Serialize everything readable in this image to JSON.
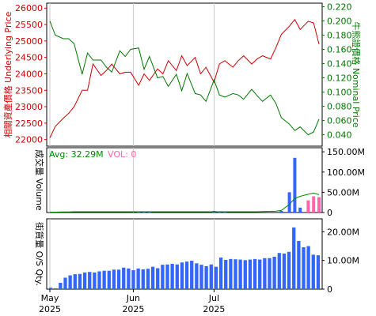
{
  "chart_data": [
    {
      "type": "line",
      "name": "price_panel",
      "x": [
        "2025-05-01",
        "2025-05-03",
        "2025-05-06",
        "2025-05-08",
        "2025-05-10",
        "2025-05-13",
        "2025-05-15",
        "2025-05-17",
        "2025-05-20",
        "2025-05-22",
        "2025-05-24",
        "2025-05-27",
        "2025-05-29",
        "2025-05-31",
        "2025-06-03",
        "2025-06-05",
        "2025-06-07",
        "2025-06-10",
        "2025-06-12",
        "2025-06-14",
        "2025-06-17",
        "2025-06-19",
        "2025-06-21",
        "2025-06-24",
        "2025-06-26",
        "2025-06-28",
        "2025-07-01",
        "2025-07-03",
        "2025-07-05",
        "2025-07-08",
        "2025-07-10",
        "2025-07-12",
        "2025-07-15",
        "2025-07-17",
        "2025-07-19",
        "2025-07-22",
        "2025-07-24",
        "2025-07-26",
        "2025-07-29",
        "2025-07-31",
        "2025-08-02",
        "2025-08-05",
        "2025-08-07",
        "2025-08-09"
      ],
      "series": [
        {
          "name": "Underlying Price",
          "axis": "left",
          "color": "#cc0000",
          "values": [
            22050,
            22400,
            22650,
            22800,
            23000,
            23500,
            23500,
            24300,
            23950,
            24100,
            24300,
            24000,
            24050,
            24050,
            23650,
            24000,
            23800,
            24150,
            24000,
            24400,
            24100,
            24550,
            24250,
            24500,
            24000,
            24200,
            23750,
            24300,
            24400,
            24200,
            24400,
            24550,
            24300,
            24450,
            24550,
            24450,
            24800,
            25200,
            25450,
            25650,
            25350,
            25600,
            25550,
            24900
          ]
        },
        {
          "name": "Nominal Price",
          "axis": "right",
          "color": "#007700",
          "values": [
            0.2,
            0.18,
            0.175,
            0.175,
            0.168,
            0.125,
            0.155,
            0.145,
            0.145,
            0.135,
            0.128,
            0.158,
            0.15,
            0.16,
            0.162,
            0.132,
            0.15,
            0.12,
            0.122,
            0.108,
            0.125,
            0.102,
            0.126,
            0.098,
            0.096,
            0.087,
            0.117,
            0.096,
            0.093,
            0.098,
            0.096,
            0.09,
            0.104,
            0.095,
            0.087,
            0.096,
            0.084,
            0.064,
            0.055,
            0.046,
            0.051,
            0.04,
            0.044,
            0.062
          ]
        }
      ],
      "ylabel_left": "相關資產價格 Underlying Price",
      "ylabel_right": "牛熊證價格 Nominal Price",
      "left_ticks": [
        22000,
        22500,
        23000,
        23500,
        24000,
        24500,
        25000,
        25500,
        26000
      ],
      "right_ticks": [
        "0.040",
        "0.060",
        "0.080",
        "0.100",
        "0.120",
        "0.140",
        "0.160",
        "0.180",
        "0.200",
        "0.220"
      ],
      "left_range": [
        21800,
        26150
      ],
      "right_range": [
        0.024,
        0.225
      ],
      "grid": true
    },
    {
      "type": "bar",
      "name": "volume_panel",
      "ylabel": "成交量 Volume",
      "legend_avg": "Avg: 32.29M",
      "legend_vol": "VOL: 0",
      "tick_labels": [
        "0",
        "50.00M",
        "100.00M",
        "150.00M"
      ],
      "tick_values": [
        0,
        50,
        100,
        150
      ],
      "range": [
        0,
        160
      ],
      "bars": [
        {
          "x": "2025-07-26",
          "value": 4,
          "color": "#3366ff"
        },
        {
          "x": "2025-07-29",
          "value": 50,
          "color": "#3366ff"
        },
        {
          "x": "2025-07-31",
          "value": 135,
          "color": "#3366ff"
        },
        {
          "x": "2025-08-02",
          "value": 12,
          "color": "#3366ff"
        },
        {
          "x": "2025-08-05",
          "value": 30,
          "color": "#ff66aa"
        },
        {
          "x": "2025-08-07",
          "value": 40,
          "color": "#ff66aa"
        },
        {
          "x": "2025-08-09",
          "value": 38,
          "color": "#ff66aa"
        }
      ],
      "avg_line": [
        1,
        1,
        1.5,
        1.5,
        2,
        2,
        2,
        2,
        2,
        2,
        2,
        2,
        2,
        2,
        2,
        2,
        2,
        2,
        2,
        2,
        2,
        2,
        2,
        2,
        2,
        2,
        2,
        2,
        2,
        2,
        2,
        2,
        2,
        2,
        2.5,
        3,
        3.5,
        5,
        20,
        35,
        40,
        45,
        48,
        44
      ],
      "small_bars": [
        {
          "x": "2025-06-03",
          "value": 3
        },
        {
          "x": "2025-06-05",
          "value": 3
        },
        {
          "x": "2025-06-07",
          "value": 3
        },
        {
          "x": "2025-07-01",
          "value": 4
        },
        {
          "x": "2025-07-03",
          "value": 3
        },
        {
          "x": "2025-07-05",
          "value": 3
        }
      ]
    },
    {
      "type": "bar",
      "name": "os_qty_panel",
      "ylabel": "街貨量 O/S Qty.",
      "tick_labels": [
        "0",
        "10.00M",
        "20.00M"
      ],
      "tick_values": [
        0,
        10,
        20
      ],
      "range": [
        0,
        24.5
      ],
      "values": [
        0.5,
        0.3,
        2.2,
        4.0,
        4.8,
        5.2,
        5.3,
        5.8,
        6.0,
        5.8,
        6.2,
        6.4,
        6.4,
        6.8,
        6.8,
        7.5,
        7.2,
        6.6,
        7.2,
        6.9,
        7.1,
        7.8,
        7.3,
        8.5,
        8.6,
        8.8,
        8.6,
        9.3,
        9.6,
        9.9,
        9.0,
        8.5,
        8.0,
        8.6,
        7.8,
        11.0,
        10.2,
        10.5,
        10.4,
        10.3,
        10.1,
        10.3,
        10.5,
        10.3,
        10.8,
        10.8,
        11.3,
        12.6,
        12.4,
        13.0,
        21.5,
        16.8,
        14.6,
        15.0,
        12.0,
        11.8
      ]
    }
  ],
  "x_axis": {
    "labels": [
      {
        "month": "May",
        "year": "2025",
        "date": "2025-05-01"
      },
      {
        "month": "Jun",
        "year": "2025",
        "date": "2025-06-01"
      },
      {
        "month": "Jul",
        "year": "2025",
        "date": "2025-07-01"
      }
    ],
    "start": "2025-05-01",
    "end": "2025-08-09"
  },
  "colors": {
    "frame": "#000000",
    "grid": "#c8c8c8",
    "price": "#cc0000",
    "nominal": "#007700",
    "avg_legend": "#008800",
    "vol_legend": "#ff66aa",
    "bar": "#3366ff"
  }
}
